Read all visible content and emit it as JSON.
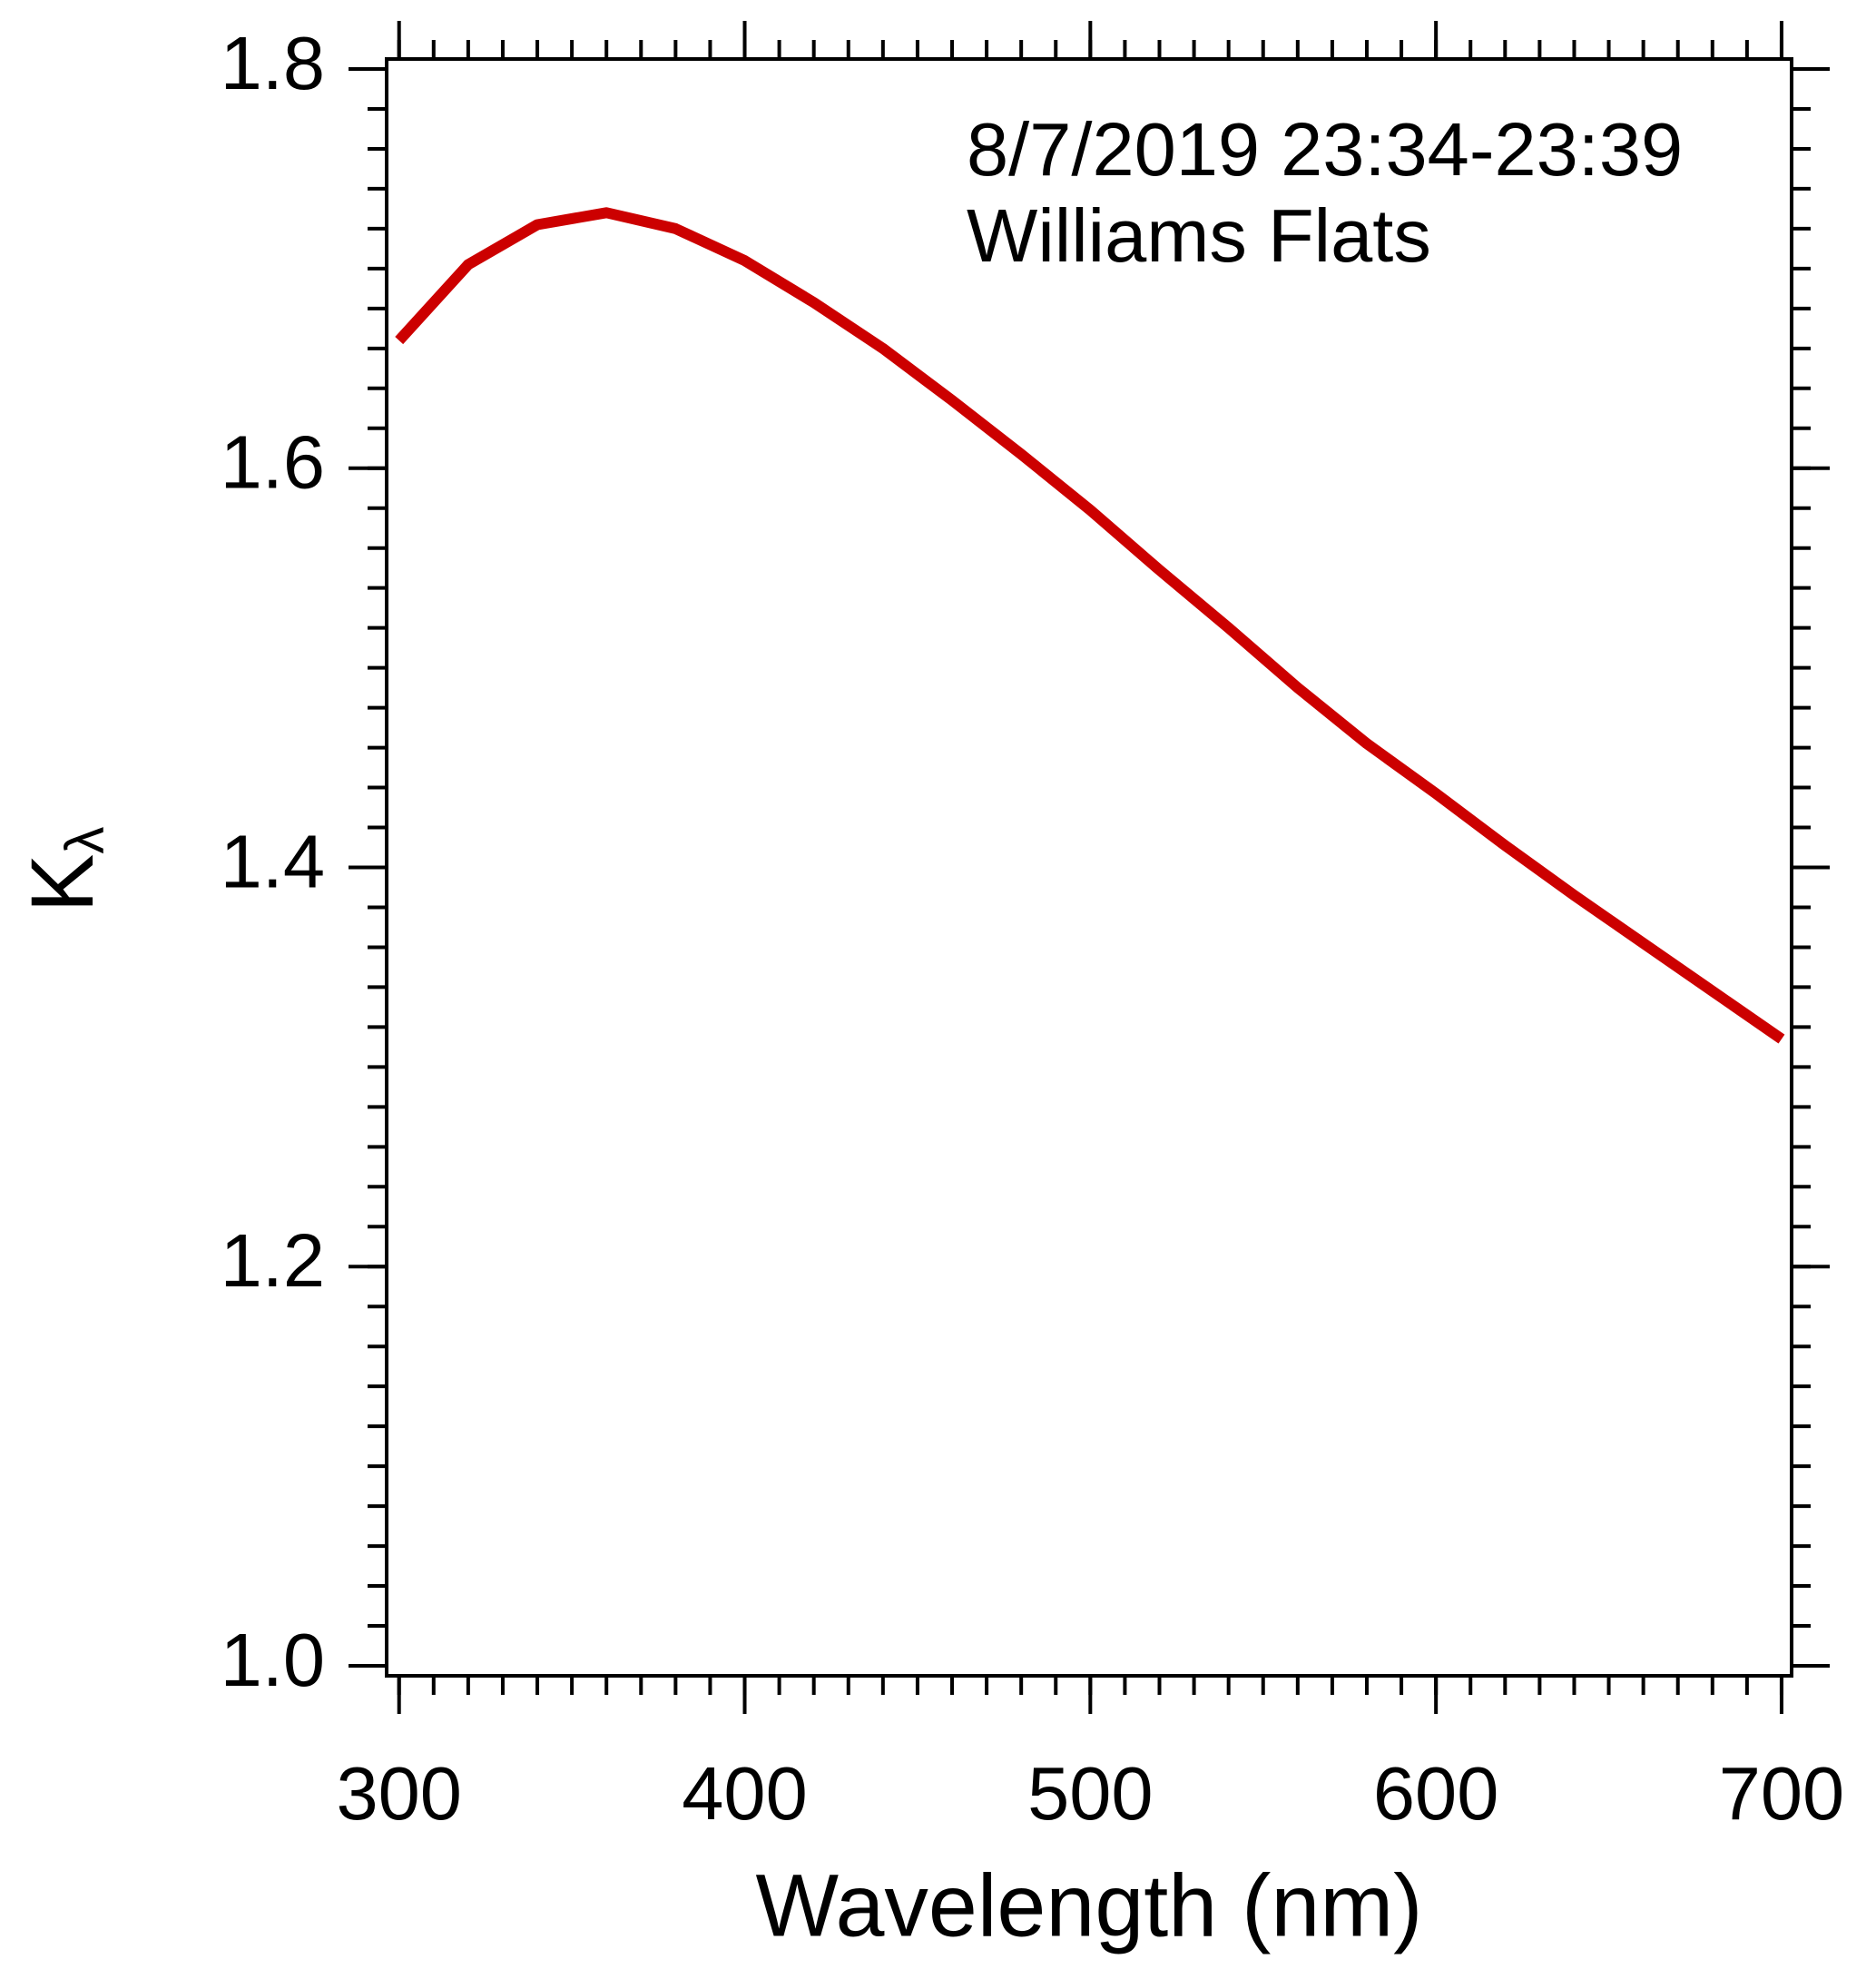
{
  "chart_data": {
    "type": "line",
    "x_label": "Wavelength (nm)",
    "y_label": "K",
    "y_label_subscript": "λ",
    "annotations": [
      "8/7/2019 23:34-23:39",
      "Williams Flats"
    ],
    "x": [
      300,
      320,
      340,
      360,
      380,
      400,
      420,
      440,
      460,
      480,
      500,
      520,
      540,
      560,
      580,
      600,
      620,
      640,
      660,
      680,
      700
    ],
    "series": [
      {
        "color": "#cc0000",
        "values": [
          1.664,
          1.702,
          1.722,
          1.728,
          1.72,
          1.704,
          1.683,
          1.66,
          1.634,
          1.607,
          1.579,
          1.549,
          1.52,
          1.49,
          1.462,
          1.437,
          1.411,
          1.386,
          1.362,
          1.338,
          1.314
        ]
      }
    ],
    "xlim": [
      296.4,
      702.9
    ],
    "ylim": [
      0.995,
      1.805
    ],
    "xticks": [
      300,
      400,
      500,
      600,
      700
    ],
    "yticks": [
      {
        "value": 1.0,
        "label": "1.0"
      },
      {
        "value": 1.2,
        "label": "1.2"
      },
      {
        "value": 1.4,
        "label": "1.4"
      },
      {
        "value": 1.6,
        "label": "1.6"
      },
      {
        "value": 1.8,
        "label": "1.8"
      }
    ],
    "x_minor_step": 10,
    "y_minor_step": 0.02,
    "grid": false
  }
}
